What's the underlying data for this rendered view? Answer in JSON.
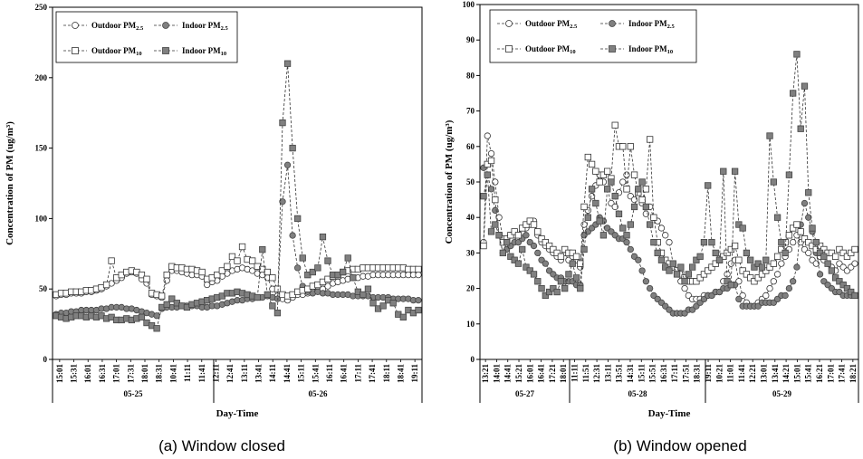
{
  "chart_data": [
    {
      "type": "line",
      "caption": "(a) Window closed",
      "xlabel": "Day-Time",
      "ylabel": "Concentration of PM (ug/m³)",
      "ylim": [
        0,
        250
      ],
      "yticks": [
        0,
        50,
        100,
        150,
        200,
        250
      ],
      "days": [
        "05-25",
        "05-26"
      ],
      "time_ticks": [
        "15:01",
        "15:31",
        "16:01",
        "16:31",
        "17:01",
        "17:31",
        "18:01",
        "18:31",
        "10:41",
        "11:11",
        "11:41",
        "12:11",
        "12:41",
        "13:11",
        "13:41",
        "14:11",
        "14:41",
        "15:11",
        "15:41",
        "16:11",
        "16:41",
        "17:11",
        "17:41",
        "18:11",
        "18:41",
        "19:11"
      ],
      "series": [
        {
          "name": "Outdoor PM2.5",
          "marker": "circle-open",
          "values": [
            45,
            46,
            46,
            47,
            47,
            47,
            48,
            48,
            49,
            50,
            52,
            54,
            56,
            58,
            61,
            62,
            61,
            57,
            54,
            46,
            45,
            44,
            56,
            63,
            63,
            62,
            61,
            60,
            60,
            59,
            53,
            55,
            56,
            59,
            61,
            63,
            64,
            65,
            64,
            63,
            61,
            60,
            58,
            50,
            45,
            43,
            42,
            44,
            46,
            46,
            47,
            48,
            49,
            50,
            52,
            54,
            55,
            56,
            57,
            58,
            58,
            59,
            59,
            60,
            60,
            60,
            60,
            60,
            60,
            60,
            60,
            60,
            60
          ]
        },
        {
          "name": "Indoor PM2.5",
          "marker": "circle-filled",
          "values": [
            32,
            33,
            33,
            34,
            34,
            35,
            35,
            35,
            35,
            36,
            36,
            37,
            37,
            37,
            36,
            36,
            35,
            34,
            33,
            32,
            31,
            36,
            37,
            37,
            37,
            38,
            38,
            38,
            38,
            37,
            37,
            38,
            38,
            39,
            40,
            41,
            42,
            42,
            43,
            43,
            44,
            44,
            45,
            44,
            43,
            112,
            138,
            88,
            65,
            52,
            48,
            47,
            48,
            47,
            47,
            46,
            46,
            46,
            46,
            45,
            45,
            45,
            45,
            44,
            44,
            44,
            44,
            43,
            43,
            43,
            43,
            42,
            42
          ]
        },
        {
          "name": "Outdoor PM10",
          "marker": "square-open",
          "values": [
            46,
            47,
            47,
            48,
            48,
            48,
            49,
            49,
            50,
            51,
            53,
            70,
            58,
            60,
            62,
            63,
            62,
            60,
            57,
            47,
            46,
            45,
            60,
            66,
            65,
            65,
            64,
            64,
            63,
            62,
            57,
            58,
            60,
            63,
            66,
            73,
            70,
            80,
            71,
            70,
            66,
            64,
            62,
            58,
            50,
            46,
            45,
            46,
            48,
            49,
            50,
            52,
            53,
            55,
            57,
            59,
            60,
            62,
            63,
            64,
            64,
            65,
            65,
            65,
            65,
            65,
            65,
            65,
            65,
            65,
            64,
            64,
            64
          ]
        },
        {
          "name": "Indoor PM10",
          "marker": "square-filled",
          "values": [
            31,
            30,
            29,
            30,
            31,
            31,
            30,
            31,
            30,
            31,
            29,
            30,
            28,
            28,
            29,
            28,
            29,
            30,
            26,
            24,
            22,
            37,
            39,
            43,
            40,
            38,
            37,
            39,
            40,
            41,
            42,
            43,
            44,
            45,
            47,
            47,
            48,
            47,
            46,
            45,
            44,
            78,
            46,
            38,
            33,
            168,
            210,
            150,
            100,
            72,
            60,
            62,
            65,
            87,
            70,
            60,
            60,
            62,
            72,
            58,
            48,
            46,
            50,
            40,
            36,
            38,
            42,
            40,
            32,
            30,
            35,
            33,
            35
          ]
        }
      ]
    },
    {
      "type": "line",
      "caption": "(b) Window opened",
      "xlabel": "Day-Time",
      "ylabel": "Concentration of PM (ug/m³)",
      "ylim": [
        0,
        100
      ],
      "yticks": [
        0,
        10,
        20,
        30,
        40,
        50,
        60,
        70,
        80,
        90,
        100
      ],
      "days": [
        "05-27",
        "05-28",
        "05-29"
      ],
      "time_ticks": [
        "13:21",
        "14:01",
        "14:41",
        "15:21",
        "16:01",
        "16:41",
        "17:21",
        "18:01",
        "11:11",
        "11:51",
        "12:31",
        "13:11",
        "13:51",
        "14:31",
        "15:11",
        "15:51",
        "16:31",
        "17:11",
        "17:51",
        "18:31",
        "19:11",
        "10:21",
        "11:01",
        "11:41",
        "12:21",
        "13:01",
        "13:41",
        "14:21",
        "15:01",
        "15:41",
        "16:21",
        "17:01",
        "17:41",
        "18:21"
      ],
      "series": [
        {
          "name": "Outdoor PM2.5",
          "marker": "circle-open",
          "values": [
            33,
            63,
            58,
            50,
            40,
            34,
            34,
            35,
            35,
            34,
            36,
            37,
            38,
            39,
            35,
            33,
            32,
            31,
            30,
            29,
            28,
            30,
            28,
            29,
            28,
            26,
            38,
            42,
            46,
            49,
            52,
            50,
            48,
            44,
            43,
            47,
            50,
            52,
            46,
            45,
            48,
            44,
            41,
            43,
            40,
            39,
            37,
            35,
            33,
            27,
            25,
            22,
            20,
            18,
            17,
            17,
            17,
            18,
            18,
            18,
            19,
            19,
            22,
            24,
            27,
            28,
            22,
            18,
            16,
            15,
            15,
            16,
            17,
            18,
            20,
            22,
            24,
            27,
            29,
            31,
            33,
            35,
            33,
            31,
            30,
            28,
            27,
            29,
            28,
            27,
            26,
            25,
            27,
            26,
            25,
            26,
            27
          ]
        },
        {
          "name": "Indoor PM2.5",
          "marker": "circle-filled",
          "values": [
            54,
            52,
            48,
            42,
            35,
            30,
            31,
            32,
            33,
            33,
            34,
            35,
            33,
            32,
            30,
            28,
            27,
            25,
            24,
            23,
            23,
            22,
            22,
            22,
            21,
            21,
            35,
            36,
            37,
            38,
            40,
            39,
            37,
            36,
            35,
            34,
            34,
            33,
            31,
            29,
            28,
            25,
            22,
            20,
            18,
            17,
            16,
            15,
            14,
            13,
            13,
            13,
            13,
            14,
            14,
            15,
            16,
            17,
            18,
            18,
            19,
            19,
            20,
            20,
            21,
            21,
            17,
            15,
            15,
            15,
            15,
            15,
            16,
            16,
            16,
            16,
            17,
            18,
            18,
            20,
            22,
            26,
            38,
            44,
            40,
            36,
            30,
            24,
            22,
            21,
            20,
            19,
            19,
            18,
            18,
            18,
            18
          ]
        },
        {
          "name": "Outdoor PM10",
          "marker": "square-open",
          "values": [
            32,
            55,
            56,
            45,
            35,
            33,
            34,
            35,
            36,
            35,
            37,
            38,
            39,
            38,
            36,
            34,
            33,
            32,
            31,
            30,
            29,
            31,
            30,
            30,
            29,
            27,
            43,
            57,
            55,
            53,
            50,
            52,
            53,
            51,
            66,
            60,
            60,
            48,
            60,
            52,
            47,
            45,
            48,
            62,
            40,
            33,
            30,
            28,
            27,
            26,
            25,
            24,
            23,
            22,
            22,
            22,
            23,
            24,
            25,
            26,
            27,
            28,
            29,
            30,
            31,
            32,
            28,
            25,
            24,
            23,
            22,
            23,
            24,
            25,
            26,
            27,
            29,
            31,
            33,
            35,
            37,
            38,
            36,
            34,
            33,
            32,
            31,
            32,
            31,
            30,
            30,
            29,
            31,
            30,
            29,
            30,
            31
          ]
        },
        {
          "name": "Indoor PM10",
          "marker": "square-filled",
          "values": [
            46,
            52,
            36,
            38,
            35,
            30,
            33,
            29,
            28,
            27,
            31,
            26,
            25,
            24,
            22,
            20,
            18,
            19,
            20,
            19,
            22,
            20,
            24,
            27,
            23,
            20,
            31,
            40,
            48,
            44,
            39,
            35,
            48,
            50,
            46,
            41,
            37,
            35,
            38,
            43,
            48,
            50,
            43,
            38,
            33,
            30,
            28,
            26,
            25,
            27,
            24,
            26,
            22,
            24,
            26,
            28,
            29,
            33,
            49,
            33,
            30,
            28,
            53,
            22,
            21,
            53,
            38,
            37,
            30,
            28,
            26,
            27,
            26,
            28,
            63,
            50,
            40,
            33,
            30,
            52,
            75,
            86,
            65,
            77,
            47,
            37,
            33,
            30,
            29,
            27,
            25,
            23,
            22,
            21,
            20,
            19,
            18
          ]
        }
      ],
      "legend": [
        "Outdoor PM2.5",
        "Indoor PM2.5",
        "Outdoor PM10",
        "Indoor PM10"
      ]
    }
  ]
}
